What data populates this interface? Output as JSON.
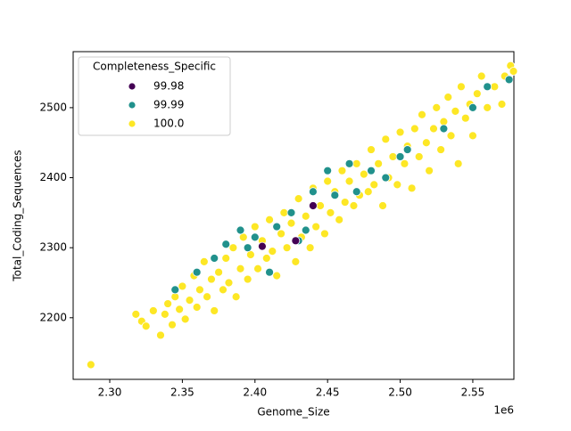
{
  "chart_data": {
    "type": "scatter",
    "x_label": "Genome_Size",
    "y_label": "Total_Coding_Sequences",
    "x_offset_label": "1e6",
    "legend_title": "Completeness_Specific",
    "legend_loc": "upper left",
    "xlim": [
      2.2748,
      2.5783
    ],
    "ylim": [
      2112,
      2580
    ],
    "xticks": [
      {
        "value": 2.3,
        "label": "2.30"
      },
      {
        "value": 2.35,
        "label": "2.35"
      },
      {
        "value": 2.4,
        "label": "2.40"
      },
      {
        "value": 2.45,
        "label": "2.45"
      },
      {
        "value": 2.5,
        "label": "2.50"
      },
      {
        "value": 2.55,
        "label": "2.55"
      }
    ],
    "yticks": [
      2200,
      2300,
      2400,
      2500
    ],
    "series": [
      {
        "name": "100.0",
        "color": "#fde725",
        "x": [
          2.287,
          2.318,
          2.322,
          2.325,
          2.33,
          2.335,
          2.338,
          2.34,
          2.343,
          2.345,
          2.348,
          2.35,
          2.352,
          2.355,
          2.358,
          2.36,
          2.362,
          2.365,
          2.367,
          2.37,
          2.372,
          2.375,
          2.378,
          2.38,
          2.382,
          2.385,
          2.387,
          2.39,
          2.392,
          2.395,
          2.397,
          2.4,
          2.402,
          2.405,
          2.408,
          2.41,
          2.412,
          2.415,
          2.418,
          2.42,
          2.422,
          2.425,
          2.428,
          2.43,
          2.432,
          2.435,
          2.438,
          2.44,
          2.442,
          2.445,
          2.448,
          2.45,
          2.452,
          2.455,
          2.458,
          2.46,
          2.462,
          2.465,
          2.468,
          2.47,
          2.472,
          2.475,
          2.478,
          2.48,
          2.482,
          2.485,
          2.488,
          2.49,
          2.492,
          2.495,
          2.498,
          2.5,
          2.503,
          2.505,
          2.508,
          2.51,
          2.513,
          2.515,
          2.518,
          2.52,
          2.523,
          2.525,
          2.528,
          2.53,
          2.533,
          2.535,
          2.538,
          2.54,
          2.542,
          2.545,
          2.548,
          2.55,
          2.553,
          2.556,
          2.56,
          2.565,
          2.57,
          2.572,
          2.576,
          2.578
        ],
        "y": [
          2133,
          2205,
          2195,
          2188,
          2210,
          2175,
          2205,
          2220,
          2190,
          2230,
          2212,
          2245,
          2198,
          2225,
          2260,
          2215,
          2240,
          2280,
          2230,
          2255,
          2210,
          2265,
          2240,
          2285,
          2250,
          2300,
          2230,
          2270,
          2315,
          2255,
          2290,
          2330,
          2270,
          2310,
          2285,
          2340,
          2295,
          2260,
          2320,
          2350,
          2300,
          2335,
          2280,
          2370,
          2315,
          2345,
          2300,
          2385,
          2330,
          2360,
          2320,
          2395,
          2350,
          2380,
          2340,
          2410,
          2365,
          2395,
          2360,
          2420,
          2375,
          2405,
          2380,
          2440,
          2390,
          2420,
          2360,
          2455,
          2400,
          2430,
          2390,
          2465,
          2420,
          2445,
          2385,
          2470,
          2430,
          2490,
          2450,
          2410,
          2470,
          2500,
          2440,
          2480,
          2515,
          2460,
          2495,
          2420,
          2530,
          2485,
          2505,
          2460,
          2520,
          2545,
          2500,
          2530,
          2505,
          2545,
          2560,
          2552
        ]
      },
      {
        "name": "99.99",
        "color": "#21918c",
        "x": [
          2.345,
          2.36,
          2.372,
          2.38,
          2.39,
          2.395,
          2.4,
          2.41,
          2.415,
          2.425,
          2.43,
          2.435,
          2.44,
          2.45,
          2.455,
          2.465,
          2.47,
          2.48,
          2.49,
          2.5,
          2.505,
          2.53,
          2.55,
          2.56,
          2.575
        ],
        "y": [
          2240,
          2265,
          2285,
          2305,
          2325,
          2300,
          2315,
          2265,
          2330,
          2350,
          2310,
          2325,
          2380,
          2410,
          2375,
          2420,
          2380,
          2410,
          2400,
          2430,
          2440,
          2470,
          2500,
          2530,
          2540
        ]
      },
      {
        "name": "99.98",
        "color": "#440154",
        "x": [
          2.405,
          2.428,
          2.44
        ],
        "y": [
          2302,
          2310,
          2360
        ]
      }
    ]
  }
}
